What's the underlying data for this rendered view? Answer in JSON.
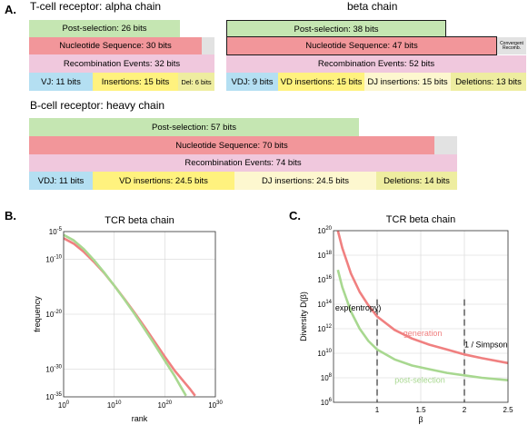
{
  "panels": {
    "a": "A.",
    "b": "B.",
    "c": "C."
  },
  "panel_a": {
    "alpha": {
      "title": "T-cell receptor: alpha chain",
      "post_selection": "Post-selection: 26 bits",
      "nucleotide": "Nucleotide Sequence: 30 bits",
      "recombination": "Recombination Events: 32 bits",
      "vj": "VJ: 11 bits",
      "insertions": "Insertions: 15 bits",
      "deletions": "Del: 6 bits"
    },
    "beta": {
      "title": "beta chain",
      "post_selection": "Post-selection: 38 bits",
      "nucleotide": "Nucleotide Sequence: 47 bits",
      "convergent": "Convergent Recomb.",
      "recombination": "Recombination Events: 52 bits",
      "vdj": "VDJ: 9 bits",
      "vd_insertions": "VD insertions: 15 bits",
      "dj_insertions": "DJ insertions: 15 bits",
      "deletions": "Deletions: 13 bits"
    },
    "heavy": {
      "title": "B-cell receptor: heavy chain",
      "post_selection": "Post-selection: 57 bits",
      "nucleotide": "Nucleotide Sequence: 70 bits",
      "recombination": "Recombination Events: 74 bits",
      "vdj": "VDJ: 11 bits",
      "vd_insertions": "VD insertions: 24.5 bits",
      "dj_insertions": "DJ insertions: 24.5 bits",
      "deletions": "Deletions: 14 bits"
    },
    "colors": {
      "post_selection": "#c5e6b2",
      "nucleotide": "#f2969a",
      "convergent": "#e2e2e2",
      "recombination": "#f0c8dd",
      "vdj": "#b4dff2",
      "vd_insertions": "#fff27e",
      "dj_insertions": "#fdf7cf",
      "deletions": "#eeeda0"
    }
  },
  "chart_data": [
    {
      "type": "line",
      "title": "TCR beta chain",
      "xlabel": "rank",
      "ylabel": "frequency",
      "x_scale": "log",
      "y_scale": "log",
      "x_ticks": [
        {
          "base": "10",
          "exp": "0"
        },
        {
          "base": "10",
          "exp": "10"
        },
        {
          "base": "10",
          "exp": "20"
        },
        {
          "base": "10",
          "exp": "30"
        }
      ],
      "y_ticks": [
        {
          "base": "10",
          "exp": "-5"
        },
        {
          "base": "10",
          "exp": "-10"
        },
        {
          "base": "10",
          "exp": "-20"
        },
        {
          "base": "10",
          "exp": "-30"
        },
        {
          "base": "10",
          "exp": "-35"
        }
      ],
      "xlim_exp": [
        0,
        30
      ],
      "ylim_exp": [
        -35,
        -5
      ],
      "grid": true,
      "series": [
        {
          "color": "#f08080",
          "x_exp": [
            0,
            2,
            4,
            6,
            8,
            10,
            12,
            14,
            16,
            18,
            20,
            22,
            24,
            25,
            26
          ],
          "y_exp": [
            -6.2,
            -7.2,
            -8.7,
            -10.5,
            -12.5,
            -14.8,
            -17.2,
            -19.7,
            -22.3,
            -25.0,
            -27.7,
            -30.3,
            -32.5,
            -33.6,
            -34.8
          ]
        },
        {
          "color": "#a8d890",
          "x_exp": [
            0,
            2,
            4,
            6,
            8,
            10,
            12,
            14,
            16,
            18,
            20,
            22,
            23,
            24.2
          ],
          "y_exp": [
            -5.6,
            -6.6,
            -8.2,
            -10.2,
            -12.4,
            -14.8,
            -17.3,
            -19.9,
            -22.7,
            -25.5,
            -28.4,
            -31.3,
            -32.9,
            -34.8
          ]
        }
      ]
    },
    {
      "type": "line",
      "title": "TCR beta chain",
      "xlabel": "β",
      "ylabel": "Diversity D(β)",
      "y_scale": "log",
      "xlim": [
        0.5,
        2.5
      ],
      "x_ticks": [
        "1",
        "1.5",
        "2",
        "2.5"
      ],
      "y_ticks": [
        {
          "base": "10",
          "exp": "6"
        },
        {
          "base": "10",
          "exp": "8"
        },
        {
          "base": "10",
          "exp": "10"
        },
        {
          "base": "10",
          "exp": "12"
        },
        {
          "base": "10",
          "exp": "14"
        },
        {
          "base": "10",
          "exp": "16"
        },
        {
          "base": "10",
          "exp": "18"
        },
        {
          "base": "10",
          "exp": "20"
        }
      ],
      "ylim_exp": [
        6,
        20
      ],
      "grid": true,
      "annotations": {
        "entropy": "exp(entropy)",
        "simpson": "1 / Simpson",
        "generation": "generation",
        "post_selection": "post-selection"
      },
      "vlines": [
        1,
        2
      ],
      "series": [
        {
          "color": "#f08080",
          "x": [
            0.55,
            0.6,
            0.7,
            0.8,
            0.9,
            1.0,
            1.2,
            1.4,
            1.6,
            1.8,
            2.0,
            2.2,
            2.5
          ],
          "y_exp": [
            20.0,
            18.6,
            16.5,
            15.0,
            13.9,
            13.0,
            11.9,
            11.2,
            10.7,
            10.3,
            9.9,
            9.6,
            9.2
          ]
        },
        {
          "color": "#a8d890",
          "x": [
            0.55,
            0.6,
            0.7,
            0.8,
            0.9,
            1.0,
            1.2,
            1.4,
            1.6,
            1.8,
            2.0,
            2.2,
            2.5
          ],
          "y_exp": [
            16.8,
            15.4,
            13.4,
            12.0,
            11.0,
            10.3,
            9.5,
            9.0,
            8.7,
            8.4,
            8.2,
            8.0,
            7.8
          ]
        }
      ]
    }
  ]
}
